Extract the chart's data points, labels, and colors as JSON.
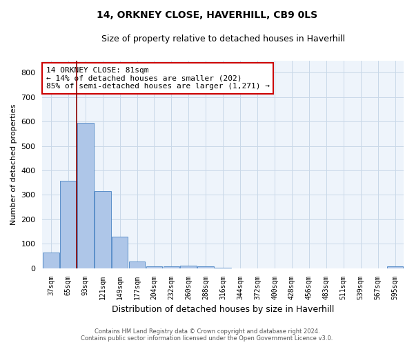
{
  "title": "14, ORKNEY CLOSE, HAVERHILL, CB9 0LS",
  "subtitle": "Size of property relative to detached houses in Haverhill",
  "xlabel": "Distribution of detached houses by size in Haverhill",
  "ylabel": "Number of detached properties",
  "footer_line1": "Contains HM Land Registry data © Crown copyright and database right 2024.",
  "footer_line2": "Contains public sector information licensed under the Open Government Licence v3.0.",
  "bar_labels": [
    "37sqm",
    "65sqm",
    "93sqm",
    "121sqm",
    "149sqm",
    "177sqm",
    "204sqm",
    "232sqm",
    "260sqm",
    "288sqm",
    "316sqm",
    "344sqm",
    "372sqm",
    "400sqm",
    "428sqm",
    "456sqm",
    "483sqm",
    "511sqm",
    "539sqm",
    "567sqm",
    "595sqm"
  ],
  "bar_values": [
    65,
    357,
    595,
    315,
    130,
    28,
    8,
    8,
    10,
    8,
    3,
    0,
    0,
    0,
    0,
    0,
    0,
    0,
    0,
    0,
    8
  ],
  "bar_color": "#aec6e8",
  "bar_edge_color": "#5b8fc9",
  "grid_color": "#c8d8e8",
  "background_color": "#eef4fb",
  "red_line_x": 1.5,
  "annotation_text": "14 ORKNEY CLOSE: 81sqm\n← 14% of detached houses are smaller (202)\n85% of semi-detached houses are larger (1,271) →",
  "annotation_box_color": "#ffffff",
  "annotation_border_color": "#cc0000",
  "ylim": [
    0,
    850
  ],
  "yticks": [
    0,
    100,
    200,
    300,
    400,
    500,
    600,
    700,
    800
  ],
  "figsize": [
    6.0,
    5.0
  ],
  "dpi": 100
}
